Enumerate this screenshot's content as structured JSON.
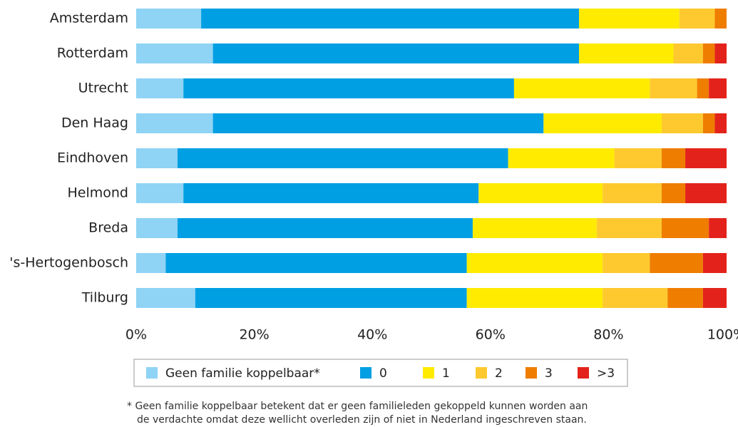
{
  "chart_data": {
    "type": "stacked-bar-horizontal",
    "categories": [
      "Amsterdam",
      "Rotterdam",
      "Utrecht",
      "Den Haag",
      "Eindhoven",
      "Helmond",
      "Breda",
      "'s-Hertogenbosch",
      "Tilburg"
    ],
    "series": [
      {
        "name": "Geen familie koppelbaar*",
        "color": "#8fd3f5",
        "values": [
          11,
          13,
          8,
          13,
          7,
          8,
          7,
          5,
          10
        ]
      },
      {
        "name": "0",
        "color": "#009fe3",
        "values": [
          64,
          62,
          56,
          56,
          56,
          50,
          50,
          51,
          46
        ]
      },
      {
        "name": "1",
        "color": "#ffeb00",
        "values": [
          17,
          16,
          23,
          20,
          18,
          21,
          21,
          23,
          23
        ]
      },
      {
        "name": "2",
        "color": "#fdc92f",
        "values": [
          6,
          5,
          8,
          7,
          8,
          10,
          11,
          8,
          11
        ]
      },
      {
        "name": "3",
        "color": "#ef7d00",
        "values": [
          2,
          2,
          2,
          2,
          4,
          4,
          8,
          9,
          6
        ]
      },
      {
        "name": ">3",
        "color": "#e3231b",
        "values": [
          0,
          2,
          3,
          2,
          7,
          7,
          3,
          4,
          4
        ]
      }
    ],
    "xlim": [
      0,
      100
    ],
    "xticks": [
      {
        "value": 0,
        "label": "0%"
      },
      {
        "value": 20,
        "label": "20%"
      },
      {
        "value": 40,
        "label": "40%"
      },
      {
        "value": 60,
        "label": "60%"
      },
      {
        "value": 80,
        "label": "80%"
      },
      {
        "value": 100,
        "label": "100%"
      }
    ],
    "footnote": [
      "* Geen familie koppelbaar betekent dat er geen familieleden gekoppeld kunnen worden aan",
      "de verdachte omdat deze wellicht overleden zijn of niet in Nederland ingeschreven staan."
    ]
  }
}
